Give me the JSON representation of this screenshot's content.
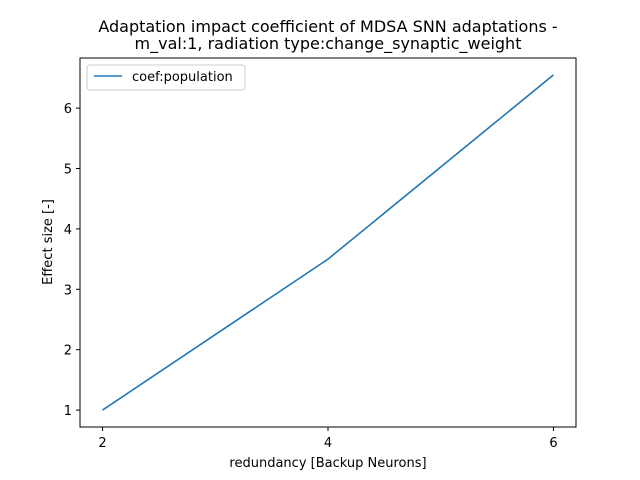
{
  "chart_data": {
    "type": "line",
    "title_lines": [
      "Adaptation impact coefficient of MDSA SNN adaptations -",
      "m_val:1, radiation type:change_synaptic_weight"
    ],
    "xlabel": "redundancy [Backup Neurons]",
    "ylabel": "Effect size [-]",
    "xlim": [
      1.8,
      6.2
    ],
    "ylim": [
      0.72,
      6.83
    ],
    "xticks": [
      2,
      4,
      6
    ],
    "yticks": [
      1,
      2,
      3,
      4,
      5,
      6
    ],
    "grid": false,
    "legend_position": "top-left",
    "series": [
      {
        "name": "coef:population",
        "color": "#1f77b4",
        "x": [
          2,
          4,
          6
        ],
        "y": [
          1.0,
          3.5,
          6.55
        ]
      }
    ]
  }
}
